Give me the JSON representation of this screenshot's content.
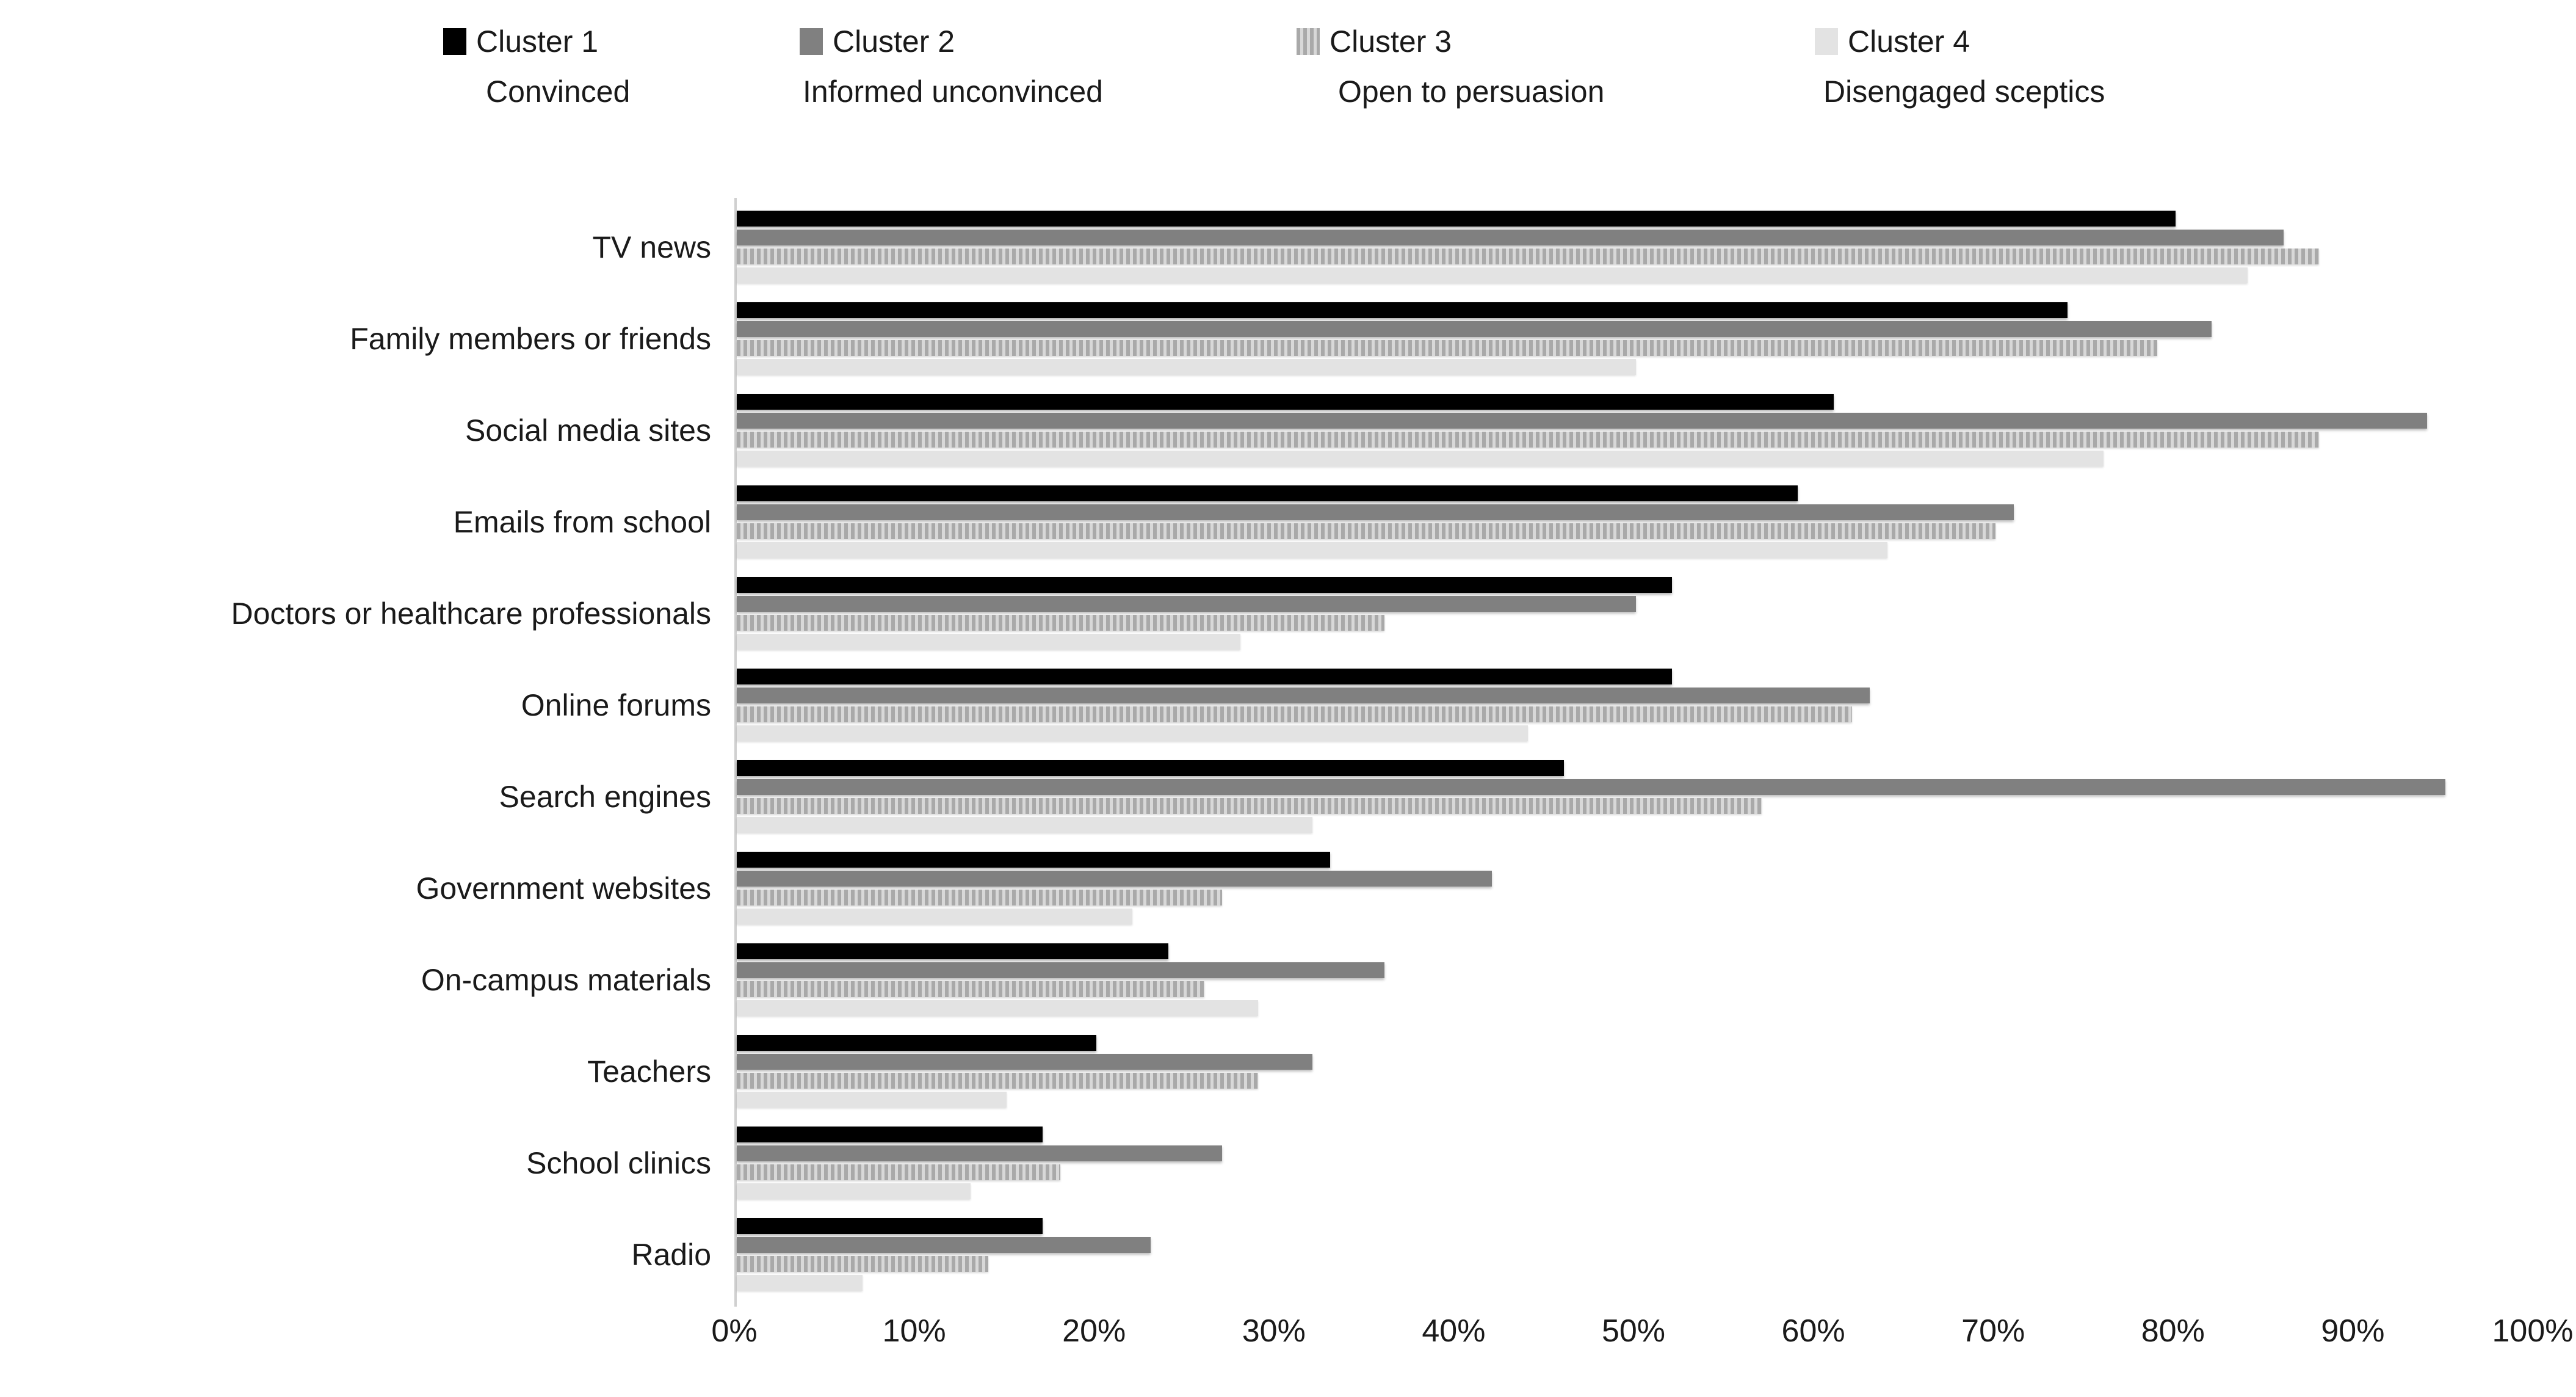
{
  "chart_data": {
    "type": "bar",
    "orientation": "horizontal",
    "title": "",
    "xlabel": "",
    "ylabel": "",
    "xlim": [
      0,
      100
    ],
    "grid": false,
    "legend_position": "top",
    "categories": [
      "TV news",
      "Family members or friends",
      "Social media sites",
      "Emails from school",
      "Doctors or healthcare professionals",
      "Online forums",
      "Search engines",
      "Government websites",
      "On-campus materials",
      "Teachers",
      "School clinics",
      "Radio"
    ],
    "series": [
      {
        "name": "Cluster 1",
        "subtitle": "Convinced",
        "color": "#000000",
        "pattern": "solid",
        "values": [
          80,
          74,
          61,
          59,
          52,
          52,
          46,
          33,
          24,
          20,
          17,
          17
        ]
      },
      {
        "name": "Cluster 2",
        "subtitle": "Informed unconvinced",
        "color": "#808080",
        "pattern": "solid",
        "values": [
          86,
          82,
          94,
          71,
          50,
          63,
          95,
          42,
          36,
          32,
          27,
          23
        ]
      },
      {
        "name": "Cluster 3",
        "subtitle": "Open to persuasion",
        "color": "#a9a9a9",
        "pattern": "vertical-stripes",
        "stripe_light_color": "#d8d8d8",
        "values": [
          88,
          79,
          88,
          70,
          36,
          62,
          57,
          27,
          26,
          29,
          18,
          14
        ]
      },
      {
        "name": "Cluster 4",
        "subtitle": "Disengaged sceptics",
        "color": "#e3e3e3",
        "pattern": "solid",
        "values": [
          84,
          50,
          76,
          64,
          28,
          44,
          32,
          22,
          29,
          15,
          13,
          7
        ]
      }
    ],
    "x_axis": {
      "ticks": [
        "0%",
        "10%",
        "20%",
        "30%",
        "40%",
        "50%",
        "60%",
        "70%",
        "80%",
        "90%",
        "100%"
      ]
    }
  },
  "colors": {
    "axis_line": "#d0d0d0",
    "text": "#1a1a1a",
    "background": "#ffffff"
  }
}
